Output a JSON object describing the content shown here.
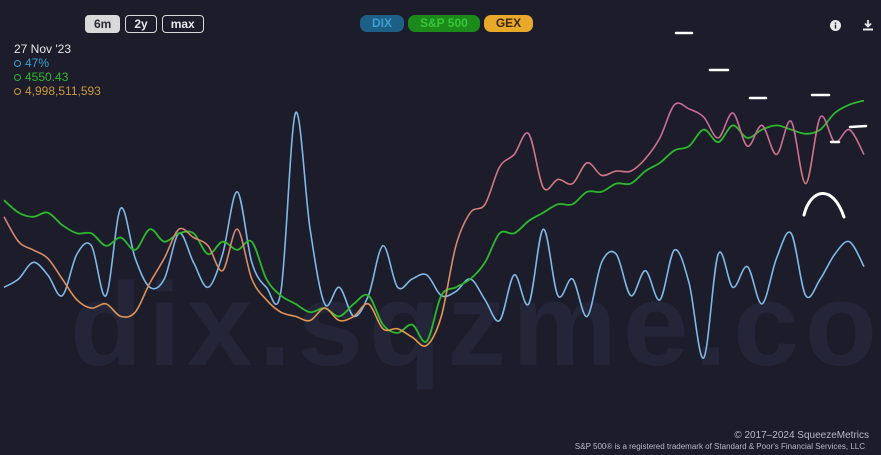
{
  "range_buttons": [
    {
      "label": "6m",
      "active": true
    },
    {
      "label": "2y",
      "active": false
    },
    {
      "label": "max",
      "active": false
    }
  ],
  "series_buttons": [
    {
      "label": "DIX",
      "bg": "#1e5f86",
      "fg": "#3a9fd4"
    },
    {
      "label": "S&P 500",
      "bg": "#1b8a1b",
      "fg": "#39c639"
    },
    {
      "label": "GEX",
      "bg": "#e8a82a",
      "fg": "#3a2a10"
    }
  ],
  "readout": {
    "date": "27 Nov '23",
    "dix": "47%",
    "spx": "4550.43",
    "gex": "4,998,511,593"
  },
  "colors": {
    "dix": "#7fb8e6",
    "dix_dot": "#3a9fd4",
    "spx": "#2db82d",
    "gex_low": "#e8a040",
    "gex_high": "#c7649e",
    "background": "#1c1c2a",
    "annotation": "#ffffff"
  },
  "icons": {
    "info": "info-icon",
    "download": "download-icon"
  },
  "watermark": "dix.sqzme.co",
  "copyright": "© 2017–2024 SqueezeMetrics",
  "trademark": "S&P 500® is a registered trademark of Standard & Poor's Financial Services, LLC",
  "chart_data": {
    "type": "line",
    "grid": false,
    "x_count": 60,
    "series": [
      {
        "name": "DIX",
        "values": [
          38,
          40,
          44,
          41,
          36,
          46,
          48,
          36,
          57,
          45,
          38,
          40,
          51,
          44,
          38,
          46,
          61,
          44,
          38,
          37,
          80,
          52,
          34,
          38,
          31,
          36,
          48,
          38,
          40,
          41,
          36,
          37,
          40,
          35,
          30,
          41,
          34,
          52,
          36,
          40,
          31,
          44,
          46,
          36,
          42,
          35,
          47,
          39,
          21,
          46,
          38,
          43,
          34,
          45,
          51,
          36,
          40,
          46,
          49,
          43
        ]
      },
      {
        "name": "S&P 500",
        "values": [
          59,
          56,
          55,
          56,
          53,
          51,
          51,
          48,
          50,
          47,
          52,
          49,
          51,
          51,
          46,
          49,
          47,
          49,
          40,
          36,
          34,
          32,
          33,
          31,
          34,
          36,
          29,
          27,
          29,
          25,
          36,
          38,
          40,
          44,
          51,
          51,
          54,
          56,
          58,
          58,
          61,
          61,
          63,
          63,
          66,
          68,
          71,
          72,
          76,
          73,
          77,
          74,
          76,
          77,
          76,
          75,
          76,
          80,
          82,
          83
        ]
      },
      {
        "name": "GEX",
        "values": [
          55,
          49,
          47,
          45,
          40,
          35,
          33,
          34,
          31,
          32,
          39,
          45,
          52,
          50,
          48,
          42,
          52,
          40,
          35,
          32,
          31,
          30,
          33,
          30,
          31,
          34,
          28,
          28,
          26,
          24,
          31,
          48,
          56,
          58,
          67,
          70,
          75,
          62,
          64,
          63,
          68,
          65,
          66,
          66,
          69,
          74,
          82,
          81,
          79,
          74,
          80,
          72,
          77,
          70,
          78,
          63,
          79,
          73,
          76,
          70
        ]
      }
    ]
  }
}
